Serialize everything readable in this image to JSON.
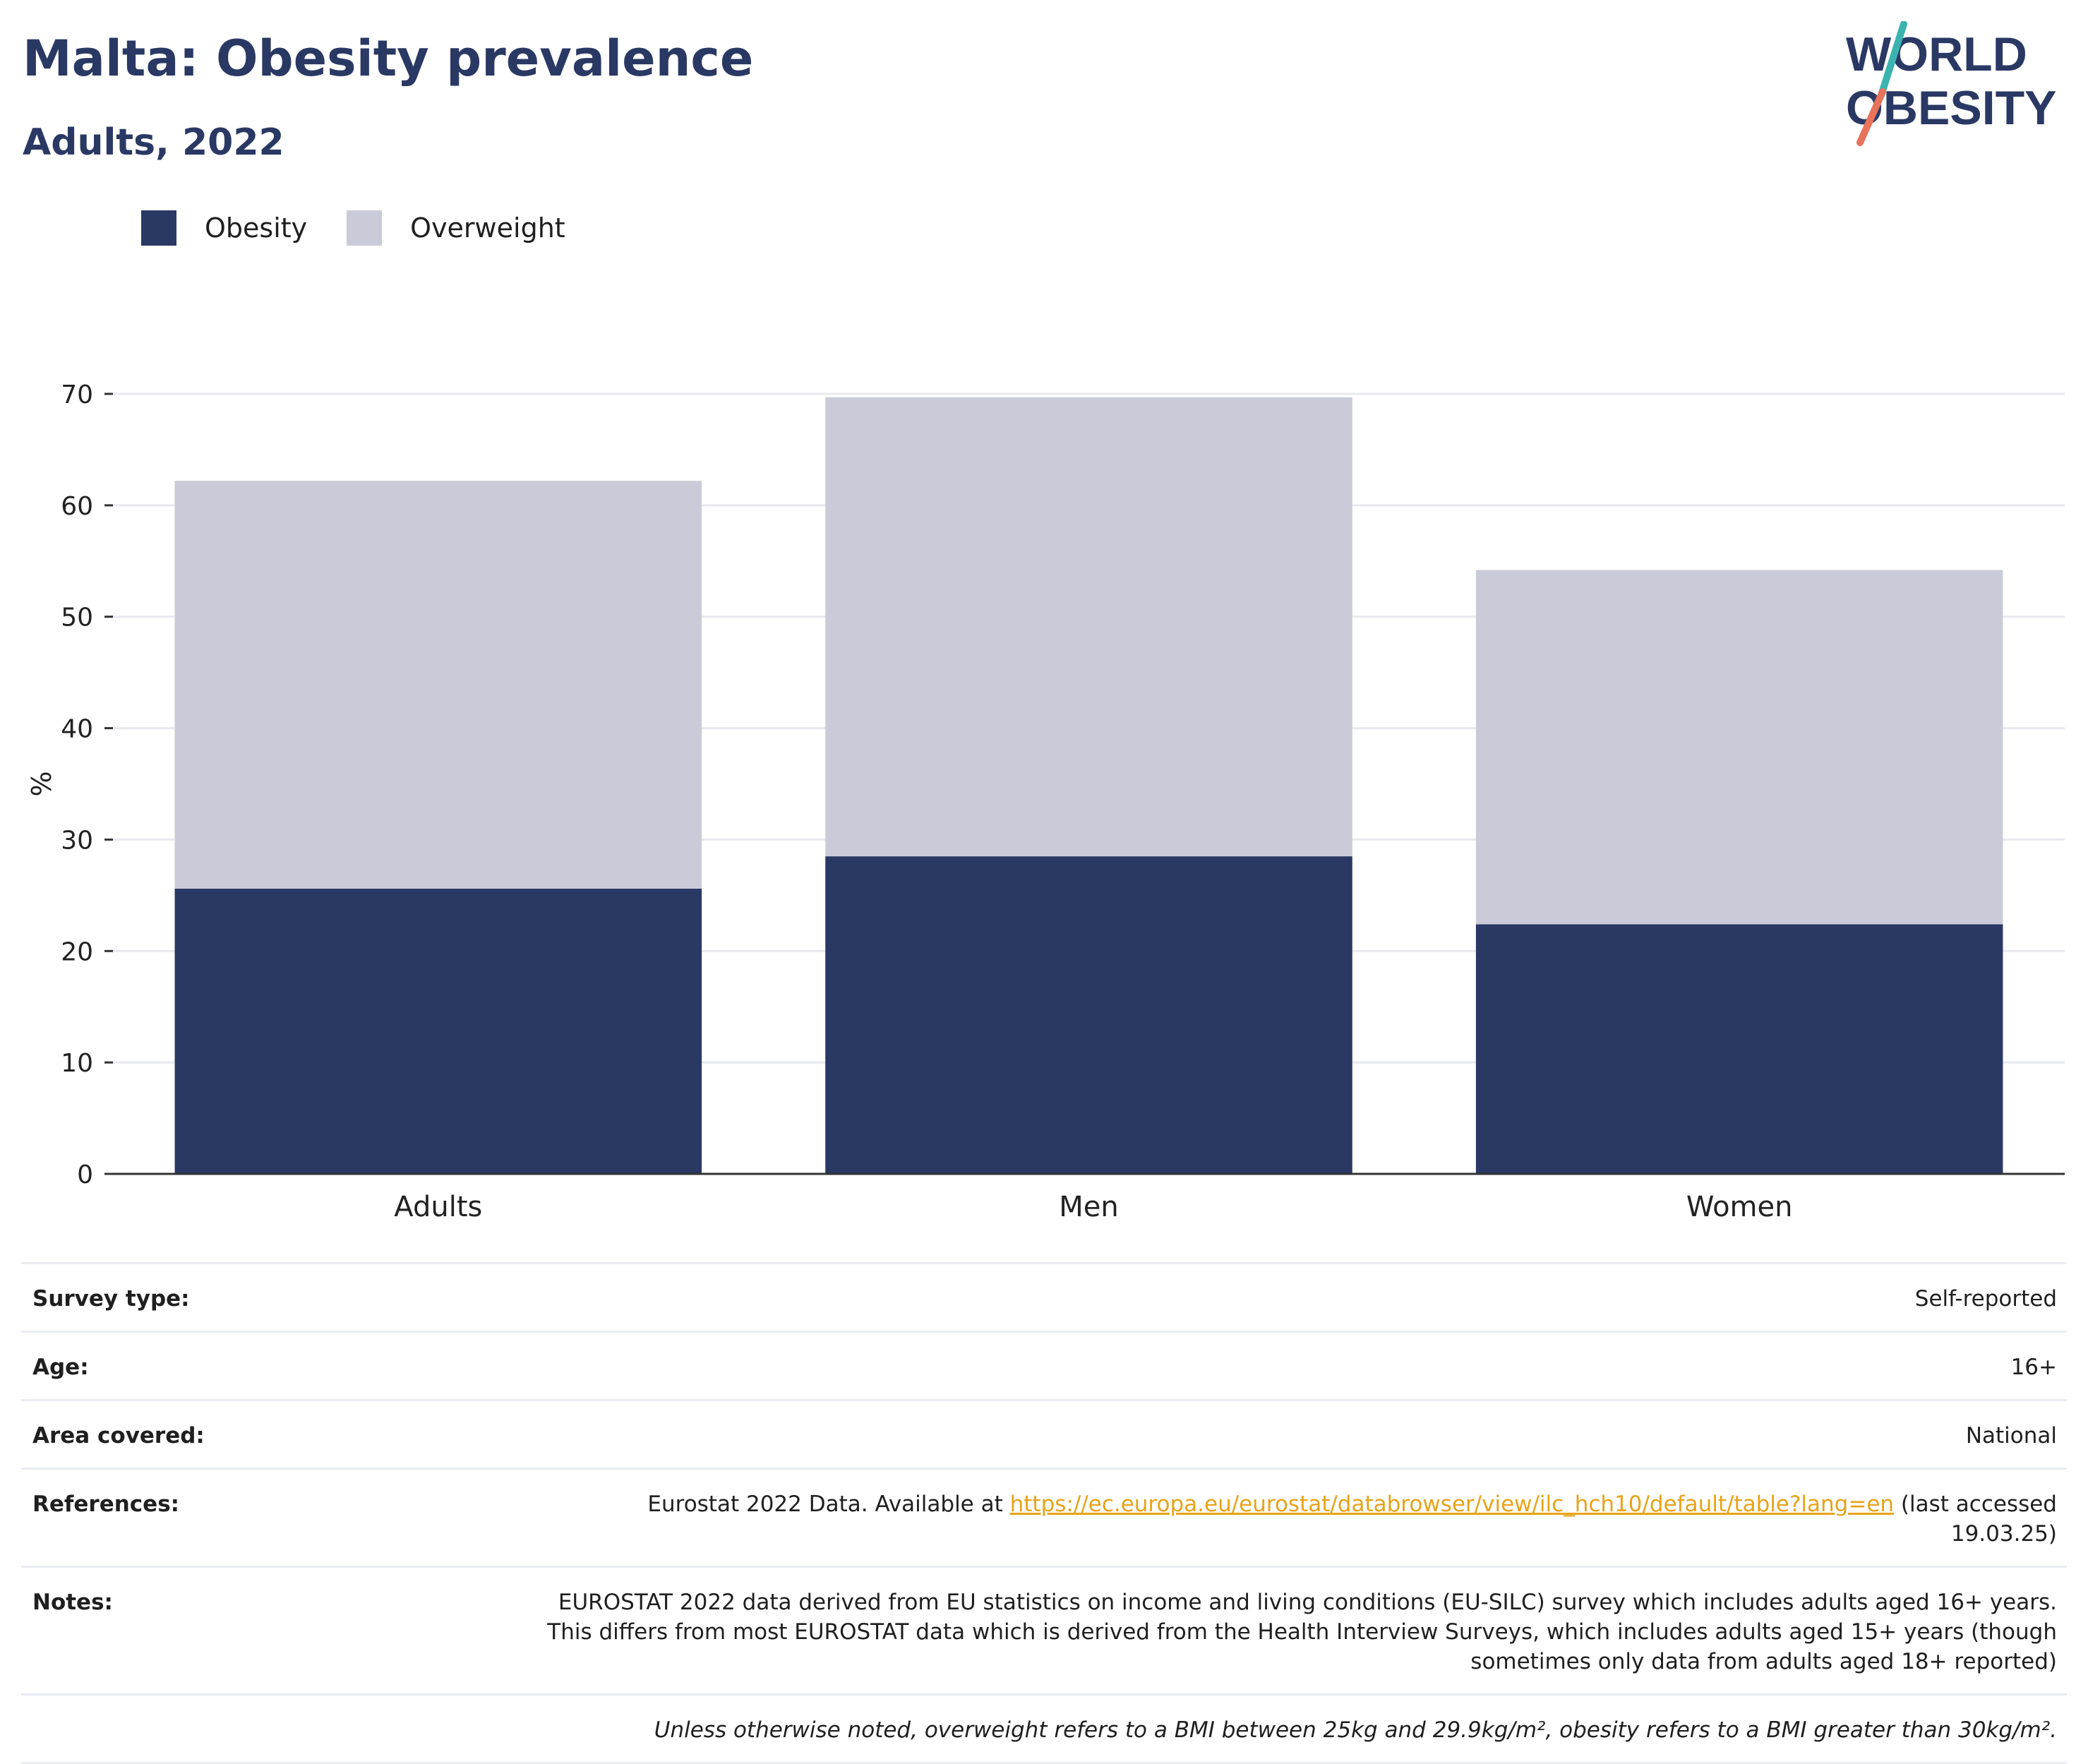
{
  "header": {
    "title": "Malta: Obesity prevalence",
    "subtitle": "Adults, 2022",
    "logo_line1": "WORLD",
    "logo_line2": "OBESITY"
  },
  "colors": {
    "obesity": "#2a3864",
    "overweight": "#c9ccd8",
    "logo_teal": "#3bb3b0",
    "logo_coral": "#e8735a"
  },
  "chart_data": {
    "type": "bar",
    "stacked": true,
    "categories": [
      "Adults",
      "Men",
      "Women"
    ],
    "series": [
      {
        "name": "Obesity",
        "values": [
          25.6,
          28.5,
          22.4
        ]
      },
      {
        "name": "Overweight",
        "values": [
          36.6,
          41.2,
          31.8
        ]
      }
    ],
    "ylabel": "%",
    "ylim": [
      0,
      70
    ],
    "yticks": [
      0,
      10,
      20,
      30,
      40,
      50,
      60,
      70
    ],
    "grid": true,
    "legend_position": "top-left"
  },
  "meta": {
    "survey_type_label": "Survey type:",
    "survey_type_value": "Self-reported",
    "age_label": "Age:",
    "age_value": "16+",
    "area_label": "Area covered:",
    "area_value": "National",
    "references_label": "References:",
    "references_prefix": "Eurostat 2022 Data. Available at ",
    "references_link": "https://ec.europa.eu/eurostat/databrowser/view/ilc_hch10/default/table?lang=en",
    "references_suffix": " (last accessed 19.03.25)",
    "notes_label": "Notes:",
    "notes_value": "EUROSTAT 2022 data derived from EU statistics on income and living conditions (EU-SILC) survey which includes adults aged 16+ years. This differs from most EUROSTAT data which is derived from the Health Interview Surveys, which includes adults aged 15+ years (though sometimes only data from adults aged 18+ reported)",
    "bmi_note": "Unless otherwise noted, overweight refers to a BMI between 25kg and 29.9kg/m², obesity refers to a BMI greater than 30kg/m²."
  }
}
